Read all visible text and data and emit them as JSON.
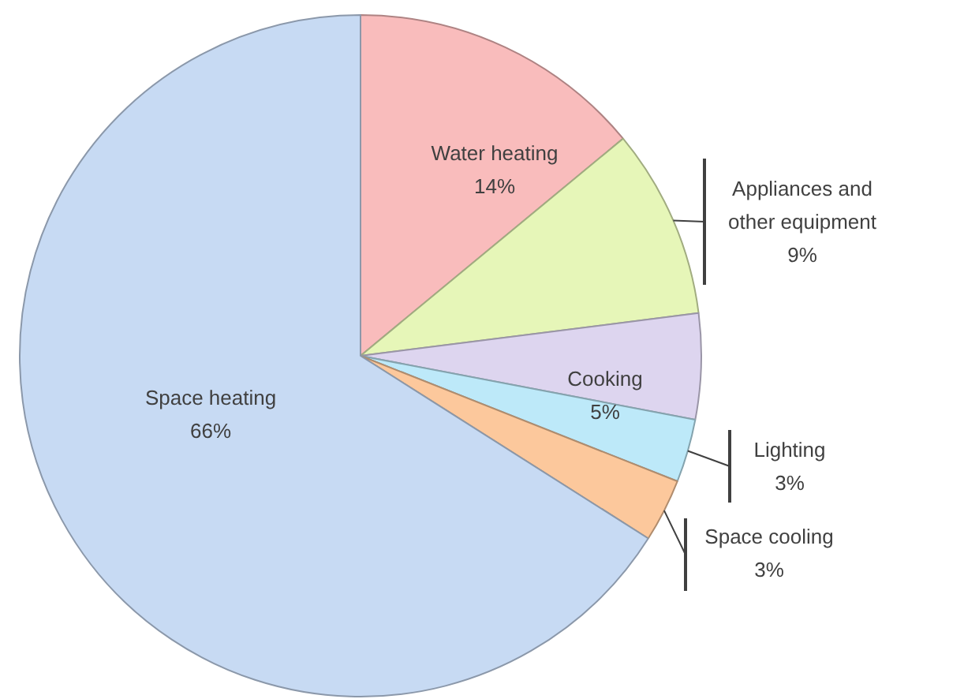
{
  "chart_data": {
    "type": "pie",
    "categories": [
      "Water heating",
      "Appliances and other equipment",
      "Cooking",
      "Lighting",
      "Space cooling",
      "Space heating"
    ],
    "values": [
      14,
      9,
      5,
      3,
      3,
      66
    ],
    "value_labels": [
      "14%",
      "9%",
      "5%",
      "3%",
      "3%",
      "66%"
    ],
    "colors": [
      "#f9bcbc",
      "#e6f6b8",
      "#ddd5ef",
      "#bde9f9",
      "#fcc89c",
      "#c7daf3"
    ]
  }
}
